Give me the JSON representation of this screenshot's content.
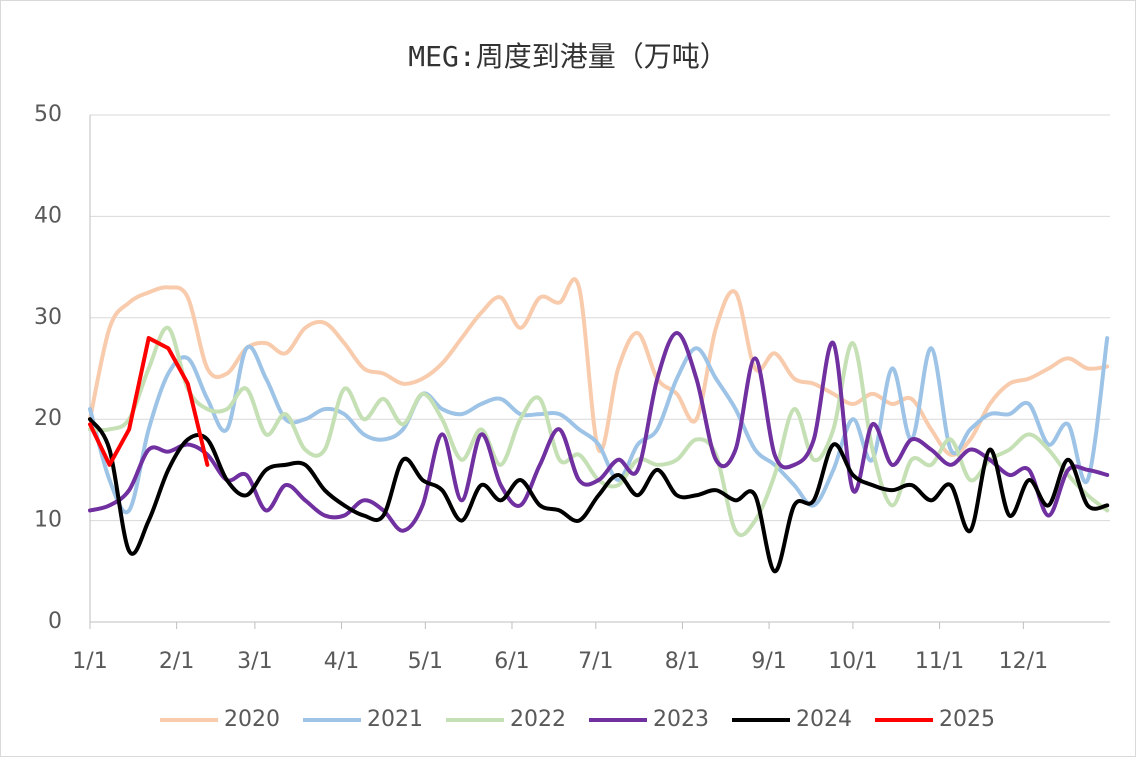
{
  "chart_data": {
    "type": "line",
    "title": "MEG:周度到港量（万吨）",
    "x": [
      0,
      7,
      14,
      21,
      28,
      35,
      42,
      49,
      56,
      63,
      70,
      77,
      84,
      91,
      98,
      105,
      112,
      119,
      126,
      133,
      140,
      147,
      154,
      161,
      168,
      175,
      182,
      189,
      196,
      203,
      210,
      217,
      224,
      231,
      238,
      245,
      252,
      259,
      266,
      273,
      280,
      287,
      294,
      301,
      308,
      315,
      322,
      329,
      336,
      343,
      350,
      357,
      364
    ],
    "xlim": [
      0,
      365
    ],
    "xticks": [
      {
        "value": 0,
        "label": "1/1"
      },
      {
        "value": 31,
        "label": "2/1"
      },
      {
        "value": 59,
        "label": "3/1"
      },
      {
        "value": 90,
        "label": "4/1"
      },
      {
        "value": 120,
        "label": "5/1"
      },
      {
        "value": 151,
        "label": "6/1"
      },
      {
        "value": 181,
        "label": "7/1"
      },
      {
        "value": 212,
        "label": "8/1"
      },
      {
        "value": 243,
        "label": "9/1"
      },
      {
        "value": 273,
        "label": "10/1"
      },
      {
        "value": 304,
        "label": "11/1"
      },
      {
        "value": 334,
        "label": "12/1"
      }
    ],
    "ylim": [
      0,
      50
    ],
    "yticks": [
      0,
      10,
      20,
      30,
      40,
      50
    ],
    "grid": true,
    "legend": "bottom",
    "series": [
      {
        "name": "2020",
        "color": "#f8cbad",
        "values": [
          20,
          29,
          31.5,
          32.5,
          33,
          32,
          25,
          24.5,
          27,
          27.5,
          26.5,
          29,
          29.5,
          27.5,
          25,
          24.5,
          23.5,
          24,
          25.5,
          28,
          30.5,
          32,
          29,
          32,
          31.5,
          33,
          17,
          25,
          28.5,
          24,
          22.5,
          20,
          29,
          32.5,
          25,
          26.5,
          24,
          23.5,
          22.5,
          21.5,
          22.5,
          21.5,
          22,
          19,
          16.5,
          18,
          21.5,
          23.5,
          24,
          25,
          26,
          25,
          25.2
        ]
      },
      {
        "name": "2021",
        "color": "#9dc3e6",
        "values": [
          21,
          14,
          11,
          19,
          24.5,
          26,
          22,
          19,
          27,
          24,
          20,
          20,
          21,
          20.5,
          18.5,
          18,
          19,
          22.5,
          21,
          20.5,
          21.5,
          22,
          20.5,
          20.5,
          20.5,
          19,
          17.5,
          14,
          17.5,
          19,
          24,
          27,
          24,
          21,
          17,
          15.5,
          13.5,
          11.5,
          15,
          20,
          16,
          25,
          18,
          27,
          17,
          19,
          20.5,
          20.5,
          21.5,
          17.5,
          19.5,
          14,
          28
        ]
      },
      {
        "name": "2022",
        "color": "#c5e0b4",
        "values": [
          19,
          19,
          20,
          25,
          29,
          23,
          21,
          21,
          23,
          18.5,
          20.5,
          17,
          17,
          23,
          20,
          22,
          19.5,
          22.5,
          20,
          16,
          19,
          15.5,
          20,
          22,
          16,
          16.5,
          14,
          13.5,
          16,
          15.5,
          16,
          18,
          16.5,
          9,
          10,
          14.5,
          21,
          16,
          19,
          27.5,
          17,
          11.5,
          16,
          15.5,
          18,
          14,
          16,
          17,
          18.5,
          17,
          14.5,
          12.5,
          11
        ]
      },
      {
        "name": "2023",
        "color": "#7030a0",
        "values": [
          11,
          11.5,
          13,
          17,
          16.8,
          17.5,
          16.5,
          14,
          14.5,
          11,
          13.5,
          12,
          10.5,
          10.5,
          12,
          11,
          9,
          11.5,
          18.5,
          12,
          18.5,
          13.5,
          11.5,
          15.5,
          19,
          14,
          14,
          16,
          15,
          24,
          28.5,
          24,
          16,
          17,
          26,
          16.5,
          15.5,
          18,
          27.5,
          13,
          19.5,
          15.5,
          18,
          17,
          15.5,
          17,
          16,
          14.5,
          15,
          10.5,
          15,
          15,
          14.5
        ]
      },
      {
        "name": "2024",
        "color": "#000000",
        "values": [
          20,
          17,
          7,
          10,
          15,
          18,
          18,
          14,
          12.5,
          15,
          15.5,
          15.5,
          13,
          11.5,
          10.5,
          10.5,
          16,
          14,
          13,
          10,
          13.5,
          12,
          14,
          11.5,
          11,
          10,
          12.5,
          14.5,
          12.5,
          15,
          12.5,
          12.5,
          13,
          12,
          12.5,
          5,
          11.5,
          12,
          17.5,
          14.5,
          13.5,
          13,
          13.5,
          12,
          13.5,
          9,
          17,
          10.5,
          14,
          11.5,
          16,
          11.5,
          11.5
        ]
      },
      {
        "name": "2025",
        "color": "#ff0000",
        "values": [
          19.5,
          15.5,
          19,
          28,
          27,
          23.5,
          15.5,
          null,
          null,
          null,
          null,
          null,
          null,
          null,
          null,
          null,
          null,
          null,
          null,
          null,
          null,
          null,
          null,
          null,
          null,
          null,
          null,
          null,
          null,
          null,
          null,
          null,
          null,
          null,
          null,
          null,
          null,
          null,
          null,
          null,
          null,
          null,
          null,
          null,
          null,
          null,
          null,
          null,
          null,
          null,
          null,
          null,
          null
        ]
      }
    ]
  }
}
